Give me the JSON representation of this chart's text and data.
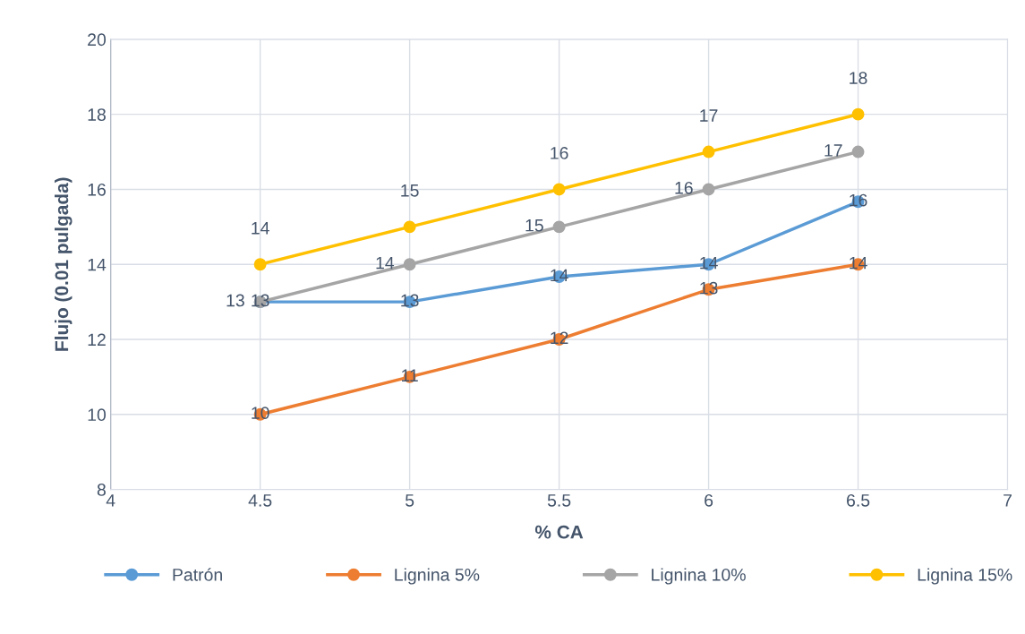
{
  "chart_data": {
    "type": "line",
    "xlabel": "% CA",
    "ylabel": "Flujo (0.01 pulgada)",
    "x": [
      4.5,
      5,
      5.5,
      6,
      6.5
    ],
    "xlim": [
      4,
      7
    ],
    "xticks": [
      4,
      4.5,
      5,
      5.5,
      6,
      6.5,
      7
    ],
    "ylim": [
      8,
      20
    ],
    "yticks": [
      8,
      10,
      12,
      14,
      16,
      18,
      20
    ],
    "grid": true,
    "legend": "bottom",
    "marker": "circle",
    "line_style": "solid",
    "series": [
      {
        "name": "Patrón",
        "color": "#5b9bd5",
        "values": [
          13,
          13,
          13.67,
          14,
          15.67
        ],
        "value_labels": [
          "13",
          "13",
          "14",
          "14",
          "16"
        ]
      },
      {
        "name": "Lignina 5%",
        "color": "#ed7d31",
        "values": [
          10,
          11,
          12,
          13.33,
          14
        ],
        "value_labels": [
          "10",
          "11",
          "12",
          "13",
          "14"
        ]
      },
      {
        "name": "Lignina 10%",
        "color": "#a5a5a5",
        "values": [
          13,
          14,
          15,
          16,
          17
        ],
        "value_labels": [
          "13",
          "14",
          "15",
          "16",
          "17"
        ]
      },
      {
        "name": "Lignina 15%",
        "color": "#ffc000",
        "values": [
          14,
          15,
          16,
          17,
          18
        ],
        "value_labels": [
          "14",
          "15",
          "16",
          "17",
          "18"
        ]
      }
    ]
  }
}
